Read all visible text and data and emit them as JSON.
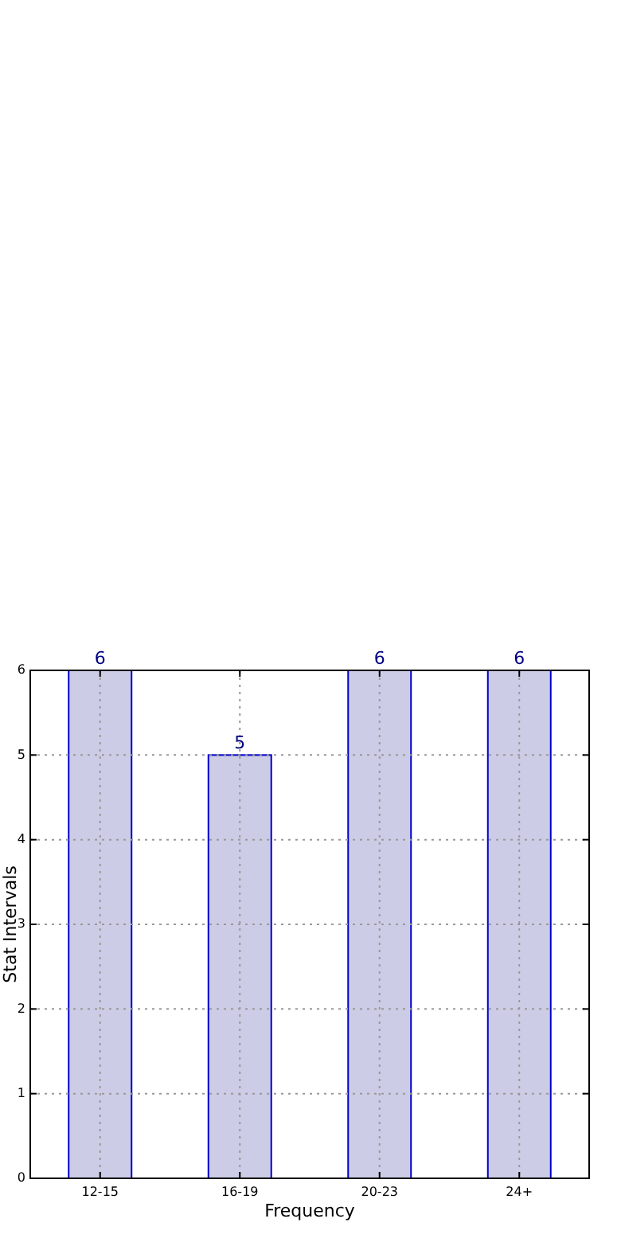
{
  "chart_data": {
    "type": "bar",
    "xlabel": "Frequency",
    "ylabel": "Stat Intervals",
    "categories": [
      "12-15",
      "16-19",
      "20-23",
      "24+"
    ],
    "values": [
      6,
      5,
      6,
      6
    ],
    "color": "#cccce6",
    "ylim": [
      0,
      6
    ],
    "yticks": [
      0,
      1,
      2,
      3,
      4,
      5,
      6
    ],
    "grid": true,
    "data_labels": true
  }
}
